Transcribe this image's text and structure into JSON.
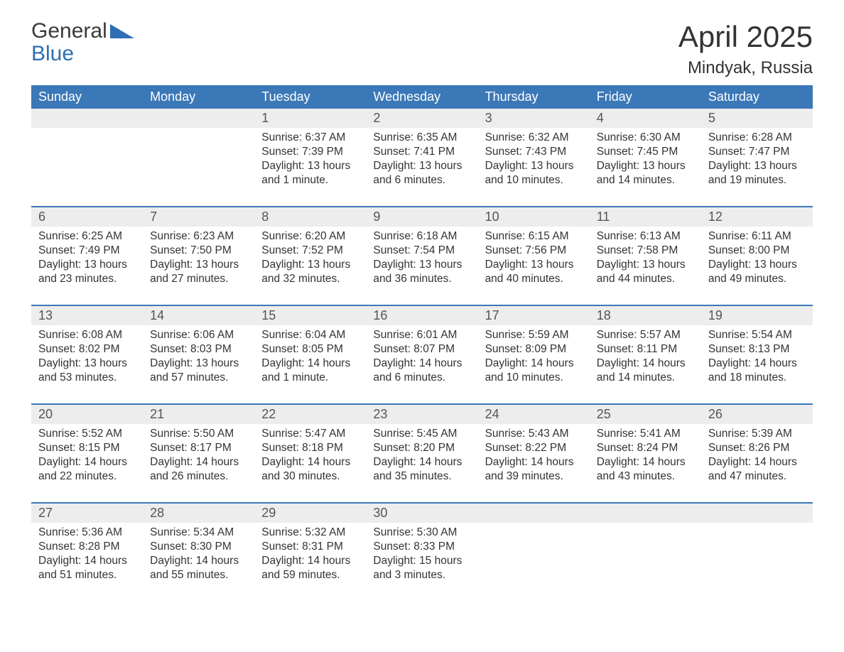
{
  "brand": {
    "name1": "General",
    "name2": "Blue"
  },
  "title": "April 2025",
  "location": "Mindyak, Russia",
  "colors": {
    "header_bg": "#3b78b8",
    "header_text": "#ffffff",
    "daynum_bg": "#ededed",
    "daynum_text": "#555555",
    "body_text": "#333333",
    "brand_blue": "#2f6eb5",
    "week_border": "#3b78b8"
  },
  "day_names": [
    "Sunday",
    "Monday",
    "Tuesday",
    "Wednesday",
    "Thursday",
    "Friday",
    "Saturday"
  ],
  "weeks": [
    [
      null,
      null,
      {
        "n": "1",
        "sunrise": "6:37 AM",
        "sunset": "7:39 PM",
        "daylight": "13 hours and 1 minute."
      },
      {
        "n": "2",
        "sunrise": "6:35 AM",
        "sunset": "7:41 PM",
        "daylight": "13 hours and 6 minutes."
      },
      {
        "n": "3",
        "sunrise": "6:32 AM",
        "sunset": "7:43 PM",
        "daylight": "13 hours and 10 minutes."
      },
      {
        "n": "4",
        "sunrise": "6:30 AM",
        "sunset": "7:45 PM",
        "daylight": "13 hours and 14 minutes."
      },
      {
        "n": "5",
        "sunrise": "6:28 AM",
        "sunset": "7:47 PM",
        "daylight": "13 hours and 19 minutes."
      }
    ],
    [
      {
        "n": "6",
        "sunrise": "6:25 AM",
        "sunset": "7:49 PM",
        "daylight": "13 hours and 23 minutes."
      },
      {
        "n": "7",
        "sunrise": "6:23 AM",
        "sunset": "7:50 PM",
        "daylight": "13 hours and 27 minutes."
      },
      {
        "n": "8",
        "sunrise": "6:20 AM",
        "sunset": "7:52 PM",
        "daylight": "13 hours and 32 minutes."
      },
      {
        "n": "9",
        "sunrise": "6:18 AM",
        "sunset": "7:54 PM",
        "daylight": "13 hours and 36 minutes."
      },
      {
        "n": "10",
        "sunrise": "6:15 AM",
        "sunset": "7:56 PM",
        "daylight": "13 hours and 40 minutes."
      },
      {
        "n": "11",
        "sunrise": "6:13 AM",
        "sunset": "7:58 PM",
        "daylight": "13 hours and 44 minutes."
      },
      {
        "n": "12",
        "sunrise": "6:11 AM",
        "sunset": "8:00 PM",
        "daylight": "13 hours and 49 minutes."
      }
    ],
    [
      {
        "n": "13",
        "sunrise": "6:08 AM",
        "sunset": "8:02 PM",
        "daylight": "13 hours and 53 minutes."
      },
      {
        "n": "14",
        "sunrise": "6:06 AM",
        "sunset": "8:03 PM",
        "daylight": "13 hours and 57 minutes."
      },
      {
        "n": "15",
        "sunrise": "6:04 AM",
        "sunset": "8:05 PM",
        "daylight": "14 hours and 1 minute."
      },
      {
        "n": "16",
        "sunrise": "6:01 AM",
        "sunset": "8:07 PM",
        "daylight": "14 hours and 6 minutes."
      },
      {
        "n": "17",
        "sunrise": "5:59 AM",
        "sunset": "8:09 PM",
        "daylight": "14 hours and 10 minutes."
      },
      {
        "n": "18",
        "sunrise": "5:57 AM",
        "sunset": "8:11 PM",
        "daylight": "14 hours and 14 minutes."
      },
      {
        "n": "19",
        "sunrise": "5:54 AM",
        "sunset": "8:13 PM",
        "daylight": "14 hours and 18 minutes."
      }
    ],
    [
      {
        "n": "20",
        "sunrise": "5:52 AM",
        "sunset": "8:15 PM",
        "daylight": "14 hours and 22 minutes."
      },
      {
        "n": "21",
        "sunrise": "5:50 AM",
        "sunset": "8:17 PM",
        "daylight": "14 hours and 26 minutes."
      },
      {
        "n": "22",
        "sunrise": "5:47 AM",
        "sunset": "8:18 PM",
        "daylight": "14 hours and 30 minutes."
      },
      {
        "n": "23",
        "sunrise": "5:45 AM",
        "sunset": "8:20 PM",
        "daylight": "14 hours and 35 minutes."
      },
      {
        "n": "24",
        "sunrise": "5:43 AM",
        "sunset": "8:22 PM",
        "daylight": "14 hours and 39 minutes."
      },
      {
        "n": "25",
        "sunrise": "5:41 AM",
        "sunset": "8:24 PM",
        "daylight": "14 hours and 43 minutes."
      },
      {
        "n": "26",
        "sunrise": "5:39 AM",
        "sunset": "8:26 PM",
        "daylight": "14 hours and 47 minutes."
      }
    ],
    [
      {
        "n": "27",
        "sunrise": "5:36 AM",
        "sunset": "8:28 PM",
        "daylight": "14 hours and 51 minutes."
      },
      {
        "n": "28",
        "sunrise": "5:34 AM",
        "sunset": "8:30 PM",
        "daylight": "14 hours and 55 minutes."
      },
      {
        "n": "29",
        "sunrise": "5:32 AM",
        "sunset": "8:31 PM",
        "daylight": "14 hours and 59 minutes."
      },
      {
        "n": "30",
        "sunrise": "5:30 AM",
        "sunset": "8:33 PM",
        "daylight": "15 hours and 3 minutes."
      },
      null,
      null,
      null
    ]
  ],
  "labels": {
    "sunrise": "Sunrise: ",
    "sunset": "Sunset: ",
    "daylight": "Daylight: "
  }
}
